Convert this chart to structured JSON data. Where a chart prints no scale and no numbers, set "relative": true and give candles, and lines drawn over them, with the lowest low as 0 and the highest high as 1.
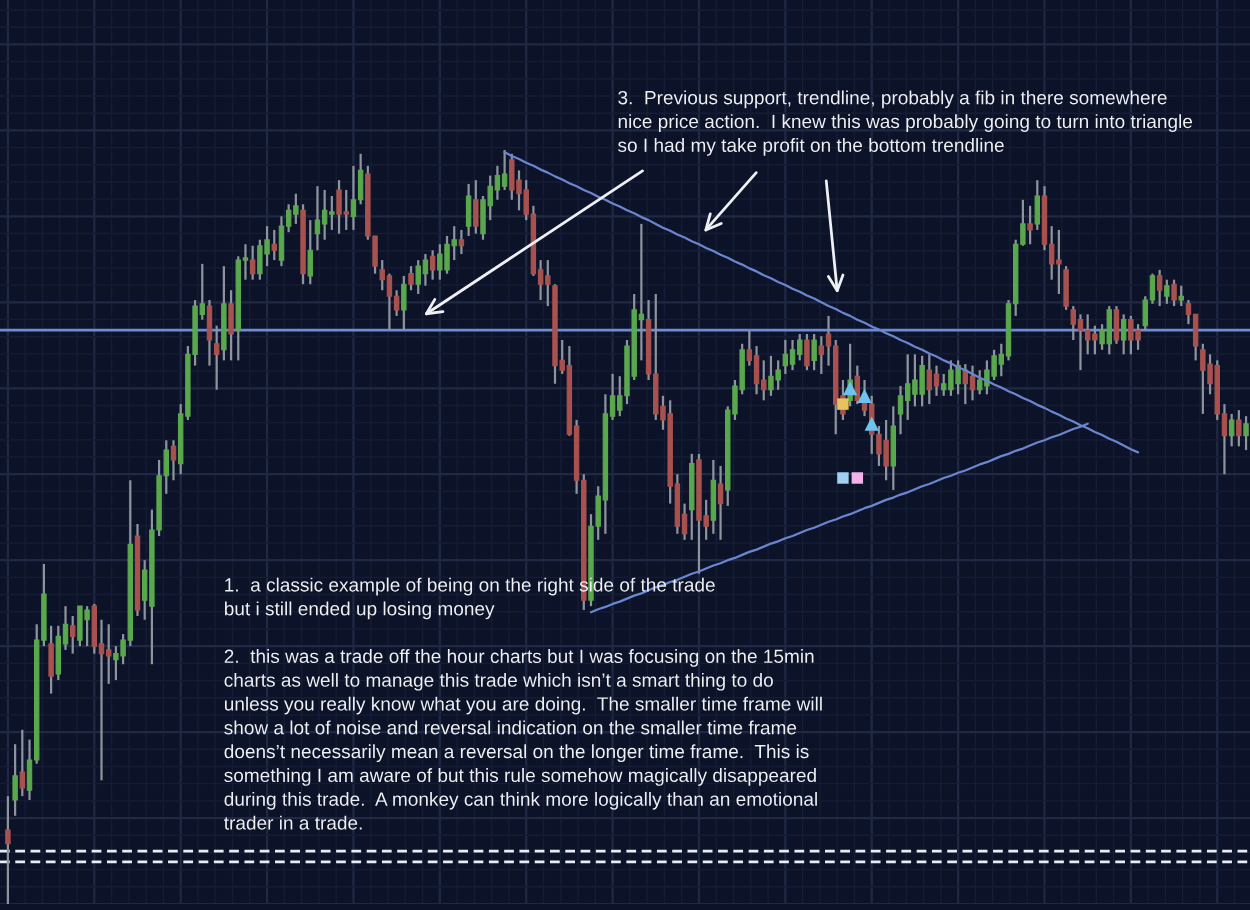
{
  "chart_data": {
    "type": "candlestick",
    "relative": true,
    "grid": true,
    "categories": [
      null,
      null,
      null,
      null,
      null,
      null,
      null,
      null,
      null,
      null,
      null,
      null,
      null,
      null,
      null,
      null,
      null,
      null,
      null,
      null,
      null,
      null,
      null,
      null,
      null,
      null,
      null,
      null,
      null,
      null,
      null,
      null,
      null,
      null,
      null,
      null,
      null,
      null,
      null,
      null,
      null,
      null,
      null,
      null,
      null,
      null,
      null,
      null,
      null,
      null,
      null,
      null,
      null,
      null,
      null,
      null,
      null,
      null,
      null,
      null,
      null,
      null,
      null,
      null,
      null,
      null,
      null,
      null,
      null,
      null,
      null,
      null,
      null,
      null,
      null,
      null,
      null,
      null,
      null,
      null,
      null,
      null,
      null,
      null,
      null,
      null,
      null,
      null,
      null,
      null,
      null,
      null,
      null,
      null,
      null,
      null,
      null,
      null,
      null,
      null,
      null,
      null,
      null,
      null,
      null,
      null,
      null,
      null,
      null,
      null,
      null,
      null,
      null,
      null,
      null,
      null,
      null,
      null,
      null,
      null,
      null,
      null,
      null,
      null,
      null,
      null,
      null,
      null,
      null,
      null,
      null,
      null,
      null,
      null,
      null,
      null,
      null,
      null,
      null,
      null,
      null,
      null,
      null,
      null,
      null,
      null,
      null,
      null,
      null,
      null,
      null,
      null,
      null,
      null,
      null,
      null,
      null,
      null,
      null,
      null,
      null,
      null,
      null,
      null,
      null,
      null,
      null,
      null,
      null,
      null,
      null,
      null,
      null
    ],
    "ohlc": [
      [
        0.098,
        0.143,
        0,
        0.08
      ],
      [
        0.138,
        0.212,
        0.117,
        0.17
      ],
      [
        0.175,
        0.231,
        0.143,
        0.154
      ],
      [
        0.151,
        0.218,
        0.138,
        0.191
      ],
      [
        0.191,
        0.371,
        0.186,
        0.35
      ],
      [
        0.35,
        0.451,
        0.342,
        0.411
      ],
      [
        0.345,
        0.369,
        0.279,
        0.302
      ],
      [
        0.305,
        0.369,
        0.297,
        0.355
      ],
      [
        0.345,
        0.395,
        0.337,
        0.371
      ],
      [
        0.369,
        0.382,
        0.332,
        0.355
      ],
      [
        0.35,
        0.395,
        0.342,
        0.395
      ],
      [
        0.377,
        0.395,
        0.342,
        0.39
      ],
      [
        0.395,
        0.398,
        0.332,
        0.342
      ],
      [
        0.345,
        0.377,
        0.164,
        0.332
      ],
      [
        0.337,
        0.371,
        0.292,
        0.329
      ],
      [
        0.324,
        0.342,
        0.297,
        0.332
      ],
      [
        0.329,
        0.358,
        0.318,
        0.35
      ],
      [
        0.35,
        0.562,
        0.342,
        0.477
      ],
      [
        0.488,
        0.504,
        0.382,
        0.39
      ],
      [
        0.403,
        0.456,
        0.377,
        0.443
      ],
      [
        0.395,
        0.523,
        0.318,
        0.496
      ],
      [
        0.496,
        0.589,
        0.488,
        0.568
      ],
      [
        0.568,
        0.615,
        0.544,
        0.602
      ],
      [
        0.607,
        0.615,
        0.562,
        0.589
      ],
      [
        0.584,
        0.663,
        0.57,
        0.65
      ],
      [
        0.647,
        0.74,
        0.642,
        0.729
      ],
      [
        0.729,
        0.801,
        0.714,
        0.793
      ],
      [
        0.782,
        0.849,
        0.775,
        0.796
      ],
      [
        0.793,
        0.801,
        0.714,
        0.748
      ],
      [
        0.743,
        0.767,
        0.682,
        0.729
      ],
      [
        0.735,
        0.846,
        0.721,
        0.796
      ],
      [
        0.796,
        0.814,
        0.721,
        0.756
      ],
      [
        0.761,
        0.859,
        0.721,
        0.854
      ],
      [
        0.854,
        0.875,
        0.828,
        0.857
      ],
      [
        0.854,
        0.873,
        0.828,
        0.836
      ],
      [
        0.836,
        0.881,
        0.828,
        0.873
      ],
      [
        0.862,
        0.899,
        0.846,
        0.881
      ],
      [
        0.875,
        0.894,
        0.854,
        0.867
      ],
      [
        0.854,
        0.912,
        0.846,
        0.899
      ],
      [
        0.899,
        0.928,
        0.891,
        0.92
      ],
      [
        0.915,
        0.942,
        0.902,
        0.926
      ],
      [
        0.92,
        0.928,
        0.822,
        0.836
      ],
      [
        0.833,
        0.907,
        0.822,
        0.867
      ],
      [
        0.889,
        0.952,
        0.867,
        0.907
      ],
      [
        0.902,
        0.947,
        0.881,
        0.92
      ],
      [
        0.915,
        0.939,
        0.894,
        0.918
      ],
      [
        0.947,
        0.96,
        0.889,
        0.915
      ],
      [
        0.918,
        0.947,
        0.894,
        0.915
      ],
      [
        0.912,
        0.979,
        0.894,
        0.934
      ],
      [
        0.934,
        0.995,
        0.928,
        0.973
      ],
      [
        0.968,
        0.979,
        0.881,
        0.886
      ],
      [
        0.886,
        0.886,
        0.836,
        0.846
      ],
      [
        0.841,
        0.854,
        0.814,
        0.828
      ],
      [
        0.833,
        0.836,
        0.761,
        0.806
      ],
      [
        0.806,
        0.814,
        0.78,
        0.788
      ],
      [
        0.788,
        0.833,
        0.761,
        0.822
      ],
      [
        0.836,
        0.846,
        0.814,
        0.822
      ],
      [
        0.822,
        0.854,
        0.809,
        0.846
      ],
      [
        0.836,
        0.862,
        0.82,
        0.854
      ],
      [
        0.859,
        0.867,
        0.828,
        0.841
      ],
      [
        0.841,
        0.875,
        0.828,
        0.862
      ],
      [
        0.841,
        0.886,
        0.836,
        0.875
      ],
      [
        0.873,
        0.899,
        0.854,
        0.881
      ],
      [
        0.881,
        0.894,
        0.862,
        0.873
      ],
      [
        0.899,
        0.955,
        0.886,
        0.939
      ],
      [
        0.934,
        0.96,
        0.889,
        0.899
      ],
      [
        0.889,
        0.939,
        0.881,
        0.934
      ],
      [
        0.926,
        0.966,
        0.907,
        0.952
      ],
      [
        0.947,
        0.979,
        0.934,
        0.966
      ],
      [
        0.952,
        1,
        0.947,
        0.968
      ],
      [
        0.987,
        0.995,
        0.934,
        0.947
      ],
      [
        0.96,
        0.973,
        0.92,
        0.942
      ],
      [
        0.947,
        0.96,
        0.907,
        0.915
      ],
      [
        0.915,
        0.926,
        0.833,
        0.836
      ],
      [
        0.841,
        0.854,
        0.801,
        0.822
      ],
      [
        0.833,
        0.854,
        0.793,
        0.822
      ],
      [
        0.82,
        0.822,
        0.69,
        0.714
      ],
      [
        0.721,
        0.748,
        0.703,
        0.708
      ],
      [
        0.714,
        0.74,
        0.621,
        0.623
      ],
      [
        0.634,
        0.642,
        0.544,
        0.562
      ],
      [
        0.562,
        0.57,
        0.39,
        0.403
      ],
      [
        0.403,
        0.517,
        0.395,
        0.501
      ],
      [
        0.501,
        0.554,
        0.483,
        0.541
      ],
      [
        0.536,
        0.676,
        0.491,
        0.65
      ],
      [
        0.647,
        0.703,
        0.642,
        0.674
      ],
      [
        0.655,
        0.7,
        0.647,
        0.674
      ],
      [
        0.674,
        0.748,
        0.663,
        0.74
      ],
      [
        0.7,
        0.809,
        0.695,
        0.788
      ],
      [
        0.775,
        0.902,
        0.721,
        0.782
      ],
      [
        0.775,
        0.801,
        0.695,
        0.703
      ],
      [
        0.703,
        0.809,
        0.642,
        0.65
      ],
      [
        0.66,
        0.674,
        0.629,
        0.642
      ],
      [
        0.65,
        0.668,
        0.531,
        0.554
      ],
      [
        0.557,
        0.57,
        0.491,
        0.501
      ],
      [
        0.517,
        0.531,
        0.483,
        0.491
      ],
      [
        0.523,
        0.597,
        0.483,
        0.584
      ],
      [
        0.589,
        0.597,
        0.438,
        0.509
      ],
      [
        0.515,
        0.536,
        0.483,
        0.501
      ],
      [
        0.509,
        0.589,
        0.491,
        0.562
      ],
      [
        0.557,
        0.581,
        0.483,
        0.531
      ],
      [
        0.549,
        0.66,
        0.528,
        0.655
      ],
      [
        0.65,
        0.695,
        0.642,
        0.687
      ],
      [
        0.682,
        0.743,
        0.676,
        0.735
      ],
      [
        0.735,
        0.761,
        0.714,
        0.721
      ],
      [
        0.727,
        0.74,
        0.676,
        0.69
      ],
      [
        0.695,
        0.721,
        0.668,
        0.682
      ],
      [
        0.682,
        0.727,
        0.674,
        0.7
      ],
      [
        0.695,
        0.721,
        0.682,
        0.708
      ],
      [
        0.714,
        0.748,
        0.703,
        0.729
      ],
      [
        0.716,
        0.748,
        0.708,
        0.735
      ],
      [
        0.729,
        0.756,
        0.721,
        0.748
      ],
      [
        0.748,
        0.756,
        0.708,
        0.714
      ],
      [
        0.721,
        0.756,
        0.708,
        0.748
      ],
      [
        0.74,
        0.753,
        0.703,
        0.729
      ],
      [
        0.756,
        0.78,
        0.714,
        0.74
      ],
      [
        0.74,
        0.748,
        0.623,
        0.663
      ],
      [
        0.674,
        0.695,
        0.642,
        0.65
      ],
      [
        0.668,
        0.743,
        0.66,
        0.695
      ],
      [
        0.7,
        0.714,
        0.663,
        0.668
      ],
      [
        0.676,
        0.695,
        0.647,
        0.655
      ],
      [
        0.663,
        0.674,
        0.597,
        0.623
      ],
      [
        0.623,
        0.634,
        0.581,
        0.597
      ],
      [
        0.615,
        0.642,
        0.562,
        0.581
      ],
      [
        0.581,
        0.66,
        0.549,
        0.634
      ],
      [
        0.65,
        0.687,
        0.623,
        0.674
      ],
      [
        0.668,
        0.729,
        0.642,
        0.69
      ],
      [
        0.676,
        0.729,
        0.66,
        0.695
      ],
      [
        0.676,
        0.727,
        0.66,
        0.714
      ],
      [
        0.708,
        0.729,
        0.663,
        0.682
      ],
      [
        0.703,
        0.714,
        0.674,
        0.687
      ],
      [
        0.682,
        0.703,
        0.674,
        0.69
      ],
      [
        0.682,
        0.721,
        0.674,
        0.708
      ],
      [
        0.69,
        0.721,
        0.676,
        0.714
      ],
      [
        0.708,
        0.716,
        0.663,
        0.69
      ],
      [
        0.7,
        0.714,
        0.668,
        0.682
      ],
      [
        0.682,
        0.708,
        0.676,
        0.695
      ],
      [
        0.687,
        0.721,
        0.676,
        0.708
      ],
      [
        0.7,
        0.735,
        0.695,
        0.727
      ],
      [
        0.716,
        0.743,
        0.7,
        0.729
      ],
      [
        0.727,
        0.801,
        0.721,
        0.796
      ],
      [
        0.796,
        0.881,
        0.78,
        0.875
      ],
      [
        0.875,
        0.934,
        0.873,
        0.902
      ],
      [
        0.902,
        0.926,
        0.875,
        0.894
      ],
      [
        0.902,
        0.96,
        0.894,
        0.939
      ],
      [
        0.939,
        0.952,
        0.867,
        0.875
      ],
      [
        0.875,
        0.899,
        0.828,
        0.849
      ],
      [
        0.854,
        0.894,
        0.809,
        0.849
      ],
      [
        0.841,
        0.846,
        0.788,
        0.793
      ],
      [
        0.788,
        0.793,
        0.748,
        0.769
      ],
      [
        0.775,
        0.782,
        0.708,
        0.761
      ],
      [
        0.761,
        0.782,
        0.729,
        0.748
      ],
      [
        0.756,
        0.767,
        0.729,
        0.748
      ],
      [
        0.743,
        0.769,
        0.735,
        0.761
      ],
      [
        0.743,
        0.793,
        0.729,
        0.788
      ],
      [
        0.788,
        0.793,
        0.743,
        0.748
      ],
      [
        0.748,
        0.782,
        0.729,
        0.775
      ],
      [
        0.775,
        0.78,
        0.729,
        0.748
      ],
      [
        0.761,
        0.769,
        0.735,
        0.748
      ],
      [
        0.767,
        0.806,
        0.761,
        0.801
      ],
      [
        0.801,
        0.836,
        0.796,
        0.833
      ],
      [
        0.833,
        0.841,
        0.793,
        0.814
      ],
      [
        0.806,
        0.828,
        0.796,
        0.82
      ],
      [
        0.822,
        0.828,
        0.793,
        0.801
      ],
      [
        0.801,
        0.82,
        0.793,
        0.806
      ],
      [
        0.796,
        0.801,
        0.769,
        0.782
      ],
      [
        0.782,
        0.782,
        0.721,
        0.74
      ],
      [
        0.735,
        0.743,
        0.65,
        0.708
      ],
      [
        0.716,
        0.729,
        0.676,
        0.69
      ],
      [
        0.714,
        0.721,
        0.642,
        0.65
      ],
      [
        0.65,
        0.663,
        0.57,
        0.621
      ],
      [
        0.621,
        0.65,
        0.607,
        0.642
      ],
      [
        0.642,
        0.655,
        0.607,
        0.621
      ],
      [
        0.621,
        0.647,
        0.602,
        0.637
      ]
    ],
    "colors": [
      "#a8524f",
      "#5aa84e",
      "#a8524f",
      "#5aa84e",
      "#5aa84e",
      "#5aa84e",
      "#a8524f",
      "#5aa84e",
      "#5aa84e",
      "#a8524f",
      "#5aa84e",
      "#5aa84e",
      "#a8524f",
      "#a8524f",
      "#a8524f",
      "#5aa84e",
      "#5aa84e",
      "#5aa84e",
      "#a8524f",
      "#5aa84e",
      "#5aa84e",
      "#5aa84e",
      "#5aa84e",
      "#a8524f",
      "#5aa84e",
      "#5aa84e",
      "#5aa84e",
      "#5aa84e",
      "#a8524f",
      "#a8524f",
      "#5aa84e",
      "#a8524f",
      "#5aa84e",
      "#5aa84e",
      "#a8524f",
      "#5aa84e",
      "#5aa84e",
      "#a8524f",
      "#5aa84e",
      "#5aa84e",
      "#5aa84e",
      "#a8524f",
      "#5aa84e",
      "#5aa84e",
      "#5aa84e",
      "#5aa84e",
      "#a8524f",
      "#a8524f",
      "#5aa84e",
      "#5aa84e",
      "#a8524f",
      "#a8524f",
      "#a8524f",
      "#a8524f",
      "#a8524f",
      "#5aa84e",
      "#a8524f",
      "#5aa84e",
      "#5aa84e",
      "#a8524f",
      "#5aa84e",
      "#5aa84e",
      "#5aa84e",
      "#a8524f",
      "#5aa84e",
      "#a8524f",
      "#5aa84e",
      "#5aa84e",
      "#5aa84e",
      "#5aa84e",
      "#a8524f",
      "#a8524f",
      "#a8524f",
      "#a8524f",
      "#a8524f",
      "#a8524f",
      "#a8524f",
      "#a8524f",
      "#a8524f",
      "#a8524f",
      "#a8524f",
      "#5aa84e",
      "#5aa84e",
      "#5aa84e",
      "#5aa84e",
      "#5aa84e",
      "#5aa84e",
      "#5aa84e",
      "#5aa84e",
      "#a8524f",
      "#a8524f",
      "#a8524f",
      "#a8524f",
      "#a8524f",
      "#a8524f",
      "#5aa84e",
      "#a8524f",
      "#a8524f",
      "#5aa84e",
      "#a8524f",
      "#5aa84e",
      "#5aa84e",
      "#5aa84e",
      "#a8524f",
      "#a8524f",
      "#a8524f",
      "#5aa84e",
      "#5aa84e",
      "#5aa84e",
      "#5aa84e",
      "#5aa84e",
      "#a8524f",
      "#5aa84e",
      "#a8524f",
      "#a8524f",
      "#a8524f",
      "#a8524f",
      "#5aa84e",
      "#a8524f",
      "#a8524f",
      "#a8524f",
      "#a8524f",
      "#a8524f",
      "#5aa84e",
      "#5aa84e",
      "#5aa84e",
      "#5aa84e",
      "#5aa84e",
      "#a8524f",
      "#a8524f",
      "#5aa84e",
      "#5aa84e",
      "#5aa84e",
      "#a8524f",
      "#a8524f",
      "#5aa84e",
      "#5aa84e",
      "#5aa84e",
      "#5aa84e",
      "#5aa84e",
      "#5aa84e",
      "#5aa84e",
      "#a8524f",
      "#5aa84e",
      "#a8524f",
      "#a8524f",
      "#a8524f",
      "#a8524f",
      "#a8524f",
      "#a8524f",
      "#a8524f",
      "#a8524f",
      "#5aa84e",
      "#5aa84e",
      "#a8524f",
      "#5aa84e",
      "#a8524f",
      "#a8524f",
      "#5aa84e",
      "#5aa84e",
      "#a8524f",
      "#5aa84e",
      "#a8524f",
      "#5aa84e",
      "#a8524f",
      "#a8524f",
      "#a8524f",
      "#a8524f",
      "#a8524f",
      "#a8524f",
      "#5aa84e",
      "#a8524f",
      "#5aa84e"
    ],
    "series": [
      {
        "type": "line",
        "color": "#6a86d0",
        "values": [
          null,
          null,
          null,
          null,
          null,
          null,
          null,
          null,
          null,
          null,
          null,
          null,
          null,
          null,
          null,
          null,
          null,
          null,
          null,
          null,
          null,
          null,
          null,
          null,
          null,
          null,
          null,
          null,
          null,
          null,
          null,
          null,
          null,
          null,
          null,
          null,
          null,
          null,
          null,
          null,
          null,
          null,
          null,
          null,
          null,
          null,
          null,
          null,
          null,
          null,
          null,
          null,
          null,
          null,
          null,
          null,
          null,
          null,
          null,
          null,
          null,
          null,
          null,
          null,
          null,
          null,
          null,
          null,
          null,
          0.997,
          0.992,
          0.988,
          0.983,
          0.979,
          0.974,
          0.97,
          0.965,
          0.961,
          0.956,
          0.952,
          0.947,
          0.943,
          0.938,
          0.934,
          0.929,
          0.925,
          0.92,
          0.916,
          0.911,
          0.907,
          0.902,
          0.897,
          0.893,
          0.888,
          0.884,
          0.879,
          0.875,
          0.87,
          0.866,
          0.861,
          0.857,
          0.852,
          0.848,
          0.843,
          0.839,
          0.834,
          0.83,
          0.825,
          0.821,
          0.816,
          0.812,
          0.807,
          0.803,
          0.798,
          0.793,
          0.789,
          0.784,
          0.78,
          0.775,
          0.771,
          0.766,
          0.762,
          0.757,
          0.753,
          0.748,
          0.744,
          0.739,
          0.735,
          0.73,
          0.726,
          0.721,
          0.717,
          0.712,
          0.708,
          0.703,
          0.698,
          0.694,
          0.689,
          0.685,
          0.68,
          0.676,
          0.671,
          0.667,
          0.662,
          0.658,
          0.653,
          0.649,
          0.644,
          0.64,
          0.635,
          0.631,
          0.626,
          0.622,
          0.617,
          0.613,
          0.608,
          0.603,
          0.599,
          null,
          null,
          null,
          null,
          null,
          null,
          null,
          null,
          null,
          null,
          null,
          null,
          null,
          null,
          null
        ]
      },
      {
        "type": "line",
        "color": "#6a86d0",
        "values": [
          null,
          null,
          null,
          null,
          null,
          null,
          null,
          null,
          null,
          null,
          null,
          null,
          null,
          null,
          null,
          null,
          null,
          null,
          null,
          null,
          null,
          null,
          null,
          null,
          null,
          null,
          null,
          null,
          null,
          null,
          null,
          null,
          null,
          null,
          null,
          null,
          null,
          null,
          null,
          null,
          null,
          null,
          null,
          null,
          null,
          null,
          null,
          null,
          null,
          null,
          null,
          null,
          null,
          null,
          null,
          null,
          null,
          null,
          null,
          null,
          null,
          null,
          null,
          null,
          null,
          null,
          null,
          null,
          null,
          null,
          null,
          null,
          null,
          null,
          null,
          null,
          null,
          null,
          null,
          null,
          null,
          0.387,
          0.391,
          0.394,
          0.398,
          0.401,
          0.405,
          0.409,
          0.412,
          0.416,
          0.42,
          0.423,
          0.427,
          0.43,
          0.434,
          0.438,
          0.441,
          0.445,
          0.449,
          0.452,
          0.456,
          0.459,
          0.463,
          0.467,
          0.47,
          0.474,
          0.478,
          0.481,
          0.485,
          0.488,
          0.492,
          0.496,
          0.499,
          0.503,
          0.507,
          0.51,
          0.514,
          0.517,
          0.521,
          0.525,
          0.528,
          0.532,
          0.536,
          0.539,
          0.543,
          0.546,
          0.55,
          0.554,
          0.557,
          0.561,
          0.565,
          0.568,
          0.572,
          0.575,
          0.579,
          0.583,
          0.586,
          0.59,
          0.594,
          0.597,
          0.601,
          0.604,
          0.608,
          0.612,
          0.615,
          0.619,
          0.622,
          0.626,
          0.63,
          0.633,
          0.637,
          null,
          null,
          null,
          null,
          null,
          null,
          null,
          null,
          null,
          null,
          null,
          null,
          null,
          null,
          null,
          null,
          null,
          null,
          null,
          null,
          null,
          null
        ]
      },
      {
        "type": "scatter",
        "marker": "triangle",
        "color": "#6ec3ee",
        "values": [
          null,
          null,
          null,
          null,
          null,
          null,
          null,
          null,
          null,
          null,
          null,
          null,
          null,
          null,
          null,
          null,
          null,
          null,
          null,
          null,
          null,
          null,
          null,
          null,
          null,
          null,
          null,
          null,
          null,
          null,
          null,
          null,
          null,
          null,
          null,
          null,
          null,
          null,
          null,
          null,
          null,
          null,
          null,
          null,
          null,
          null,
          null,
          null,
          null,
          null,
          null,
          null,
          null,
          null,
          null,
          null,
          null,
          null,
          null,
          null,
          null,
          null,
          null,
          null,
          null,
          null,
          null,
          null,
          null,
          null,
          null,
          null,
          null,
          null,
          null,
          null,
          null,
          null,
          null,
          null,
          null,
          null,
          null,
          null,
          null,
          null,
          null,
          null,
          null,
          null,
          null,
          null,
          null,
          null,
          null,
          null,
          null,
          null,
          null,
          null,
          null,
          null,
          null,
          null,
          null,
          null,
          null,
          null,
          null,
          null,
          null,
          null,
          null,
          null,
          null,
          null,
          null,
          0.684,
          null,
          0.674,
          0.637,
          null,
          null,
          null,
          null,
          null,
          null,
          null,
          null,
          null,
          null,
          null,
          null,
          null,
          null,
          null,
          null,
          null,
          null,
          null,
          null,
          null,
          null,
          null,
          null,
          null,
          null,
          null,
          null,
          null,
          null,
          null,
          null,
          null,
          null,
          null,
          null,
          null,
          null,
          null,
          null,
          null,
          null,
          null,
          null,
          null,
          null,
          null,
          null,
          null,
          null,
          null,
          null
        ]
      },
      {
        "type": "scatter",
        "marker": "square",
        "values": [
          null,
          null,
          null,
          null,
          null,
          null,
          null,
          null,
          null,
          null,
          null,
          null,
          null,
          null,
          null,
          null,
          null,
          null,
          null,
          null,
          null,
          null,
          null,
          null,
          null,
          null,
          null,
          null,
          null,
          null,
          null,
          null,
          null,
          null,
          null,
          null,
          null,
          null,
          null,
          null,
          null,
          null,
          null,
          null,
          null,
          null,
          null,
          null,
          null,
          null,
          null,
          null,
          null,
          null,
          null,
          null,
          null,
          null,
          null,
          null,
          null,
          null,
          null,
          null,
          null,
          null,
          null,
          null,
          null,
          null,
          null,
          null,
          null,
          null,
          null,
          null,
          null,
          null,
          null,
          null,
          null,
          null,
          null,
          null,
          null,
          null,
          null,
          null,
          null,
          null,
          null,
          null,
          null,
          null,
          null,
          null,
          null,
          null,
          null,
          null,
          null,
          null,
          null,
          null,
          null,
          null,
          null,
          null,
          null,
          null,
          null,
          null,
          null,
          null,
          null,
          null,
          0.565,
          null,
          0.565,
          null,
          null,
          null,
          null,
          null,
          null,
          null,
          null,
          null,
          null,
          null,
          null,
          null,
          null,
          null,
          null,
          null,
          null,
          null,
          null,
          null,
          null,
          null,
          null,
          null,
          null,
          null,
          null,
          null,
          null,
          null,
          null,
          null,
          null,
          null,
          null,
          null,
          null,
          null,
          null,
          null,
          null,
          null,
          null,
          null,
          null,
          null,
          null,
          null,
          null,
          null,
          null,
          null,
          null
        ],
        "colors": [
          null,
          null,
          null,
          null,
          null,
          null,
          null,
          null,
          null,
          null,
          null,
          null,
          null,
          null,
          null,
          null,
          null,
          null,
          null,
          null,
          null,
          null,
          null,
          null,
          null,
          null,
          null,
          null,
          null,
          null,
          null,
          null,
          null,
          null,
          null,
          null,
          null,
          null,
          null,
          null,
          null,
          null,
          null,
          null,
          null,
          null,
          null,
          null,
          null,
          null,
          null,
          null,
          null,
          null,
          null,
          null,
          null,
          null,
          null,
          null,
          null,
          null,
          null,
          null,
          null,
          null,
          null,
          null,
          null,
          null,
          null,
          null,
          null,
          null,
          null,
          null,
          null,
          null,
          null,
          null,
          null,
          null,
          null,
          null,
          null,
          null,
          null,
          null,
          null,
          null,
          null,
          null,
          null,
          null,
          null,
          null,
          null,
          null,
          null,
          null,
          null,
          null,
          null,
          null,
          null,
          null,
          null,
          null,
          null,
          null,
          null,
          null,
          null,
          null,
          null,
          null,
          "#9fd0f2",
          null,
          "#f2b3ea",
          null,
          null,
          null,
          null,
          null,
          null,
          null,
          null,
          null,
          null,
          null,
          null,
          null,
          null,
          null,
          null,
          null,
          null,
          null,
          null,
          null,
          null,
          null,
          null,
          null,
          null,
          null,
          null,
          null,
          null,
          null,
          null,
          null,
          null,
          null,
          null,
          null,
          null,
          null,
          null,
          null,
          null,
          null,
          null,
          null,
          null,
          null,
          null,
          null,
          null,
          null,
          null,
          null,
          null
        ]
      },
      {
        "type": "scatter",
        "marker": "square",
        "color": "#e6c45c",
        "values": [
          null,
          null,
          null,
          null,
          null,
          null,
          null,
          null,
          null,
          null,
          null,
          null,
          null,
          null,
          null,
          null,
          null,
          null,
          null,
          null,
          null,
          null,
          null,
          null,
          null,
          null,
          null,
          null,
          null,
          null,
          null,
          null,
          null,
          null,
          null,
          null,
          null,
          null,
          null,
          null,
          null,
          null,
          null,
          null,
          null,
          null,
          null,
          null,
          null,
          null,
          null,
          null,
          null,
          null,
          null,
          null,
          null,
          null,
          null,
          null,
          null,
          null,
          null,
          null,
          null,
          null,
          null,
          null,
          null,
          null,
          null,
          null,
          null,
          null,
          null,
          null,
          null,
          null,
          null,
          null,
          null,
          null,
          null,
          null,
          null,
          null,
          null,
          null,
          null,
          null,
          null,
          null,
          null,
          null,
          null,
          null,
          null,
          null,
          null,
          null,
          null,
          null,
          null,
          null,
          null,
          null,
          null,
          null,
          null,
          null,
          null,
          null,
          null,
          null,
          null,
          null,
          0.663,
          null,
          null,
          null,
          null,
          null,
          null,
          null,
          null,
          null,
          null,
          null,
          null,
          null,
          null,
          null,
          null,
          null,
          null,
          null,
          null,
          null,
          null,
          null,
          null,
          null,
          null,
          null,
          null,
          null,
          null,
          null,
          null,
          null,
          null,
          null,
          null,
          null,
          null,
          null,
          null,
          null,
          null,
          null,
          null,
          null,
          null,
          null,
          null,
          null,
          null,
          null,
          null,
          null,
          null,
          null,
          null
        ]
      }
    ],
    "ref_lines": [
      {
        "axis": "y",
        "value": 0.761,
        "color": "#6d8bd6"
      },
      {
        "axis": "y",
        "value": 0.07,
        "color": "#e8ecf4",
        "line_style": "dashed"
      },
      {
        "axis": "y",
        "value": 0.056,
        "color": "#e8ecf4",
        "line_style": "dashed"
      }
    ],
    "annotations": [
      "3.  Previous support, trendline, probably a fib in there somewhere\nnice price action.  I knew this was probably going to turn into triangle\nso I had my take profit on the bottom trendline",
      "1.  a classic example of being on the right side of the trade\nbut i still ended up losing money",
      "2.  this was a trade off the hour charts but I was focusing on the 15min\ncharts as well to manage this trade which isn’t a smart thing to do\nunless you really know what you are doing.  The smaller time frame will\nshow a lot of noise and reversal indication on the smaller time frame\ndoens’t necessarily mean a reversal on the longer time frame.  This is\nsomething I am aware of but this rule somehow magically disappeared\nduring this trade.  A monkey can think more logically than an emotional\ntrader in a trade."
    ]
  }
}
